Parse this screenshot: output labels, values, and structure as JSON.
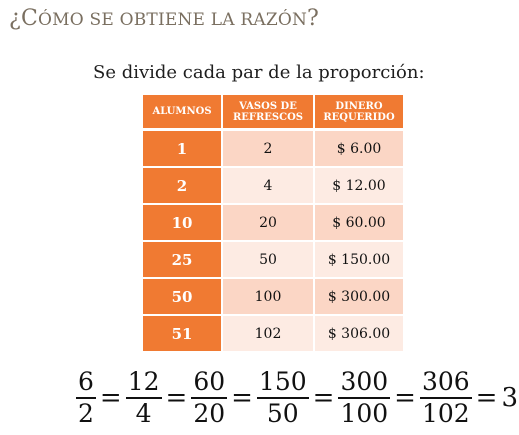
{
  "title": {
    "mark": "¿",
    "c": "C",
    "rest": "ÓMO SE OBTIENE LA RAZÓN",
    "q": "?"
  },
  "subtitle": "Se divide cada par de la proporción:",
  "table": {
    "headers": [
      "ALUMNOS",
      "VASOS DE REFRESCOS",
      "DINERO REQUERIDO"
    ],
    "header_lines": [
      [
        "ALUMNOS"
      ],
      [
        "VASOS DE",
        "REFRESCOS"
      ],
      [
        "DINERO",
        "REQUERIDO"
      ]
    ],
    "rows": [
      [
        "1",
        "2",
        "$ 6.00"
      ],
      [
        "2",
        "4",
        "$ 12.00"
      ],
      [
        "10",
        "20",
        "$ 60.00"
      ],
      [
        "25",
        "50",
        "$ 150.00"
      ],
      [
        "50",
        "100",
        "$ 300.00"
      ],
      [
        "51",
        "102",
        "$ 306.00"
      ]
    ]
  },
  "equation": {
    "fractions": [
      {
        "num": "6",
        "den": "2"
      },
      {
        "num": "12",
        "den": "4"
      },
      {
        "num": "60",
        "den": "20"
      },
      {
        "num": "150",
        "den": "50"
      },
      {
        "num": "300",
        "den": "100"
      },
      {
        "num": "306",
        "den": "102"
      }
    ],
    "operator": "=",
    "result": "3"
  },
  "colors": {
    "accent": "#f07a32",
    "row_dark": "#fbd6c5",
    "row_light": "#fdebe3",
    "title": "#7a6f60"
  }
}
